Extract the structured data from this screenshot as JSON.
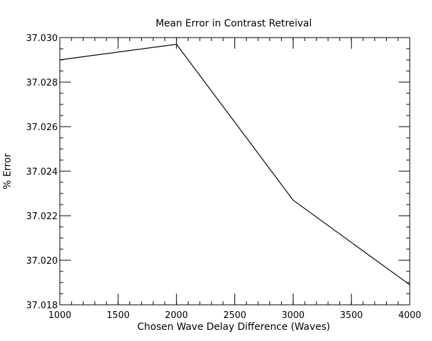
{
  "chart_data": {
    "type": "line",
    "title": "Mean Error in Contrast Retreival",
    "xlabel": "Chosen Wave Delay Difference (Waves)",
    "ylabel": "% Error",
    "xlim": [
      1000,
      4000
    ],
    "ylim": [
      37.018,
      37.03
    ],
    "x_major_ticks": [
      1000,
      1500,
      2000,
      2500,
      3000,
      3500,
      4000
    ],
    "x_tick_labels": [
      "1000",
      "1500",
      "2000",
      "2500",
      "3000",
      "3500",
      "4000"
    ],
    "y_major_ticks": [
      37.018,
      37.02,
      37.022,
      37.024,
      37.026,
      37.028,
      37.03
    ],
    "y_tick_labels": [
      "37.018",
      "37.020",
      "37.022",
      "37.024",
      "37.026",
      "37.028",
      "37.030"
    ],
    "x_minor_step": 100,
    "y_minor_step": 0.0005,
    "grid": false,
    "series": [
      {
        "x": [
          1000,
          2000,
          3000,
          4000
        ],
        "y": [
          37.029,
          37.0297,
          37.0227,
          37.0189
        ]
      }
    ],
    "colors": {
      "line": "#000000",
      "axes": "#000000",
      "background": "#ffffff"
    }
  }
}
